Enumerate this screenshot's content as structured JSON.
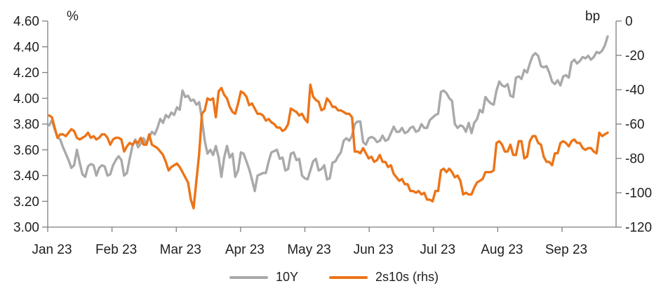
{
  "chart_data": {
    "type": "line",
    "title": "",
    "left_axis": {
      "label": "%",
      "min": 3.0,
      "max": 4.6,
      "tick_step": 0.2,
      "ticks": [
        "4.60",
        "4.40",
        "4.20",
        "4.00",
        "3.80",
        "3.60",
        "3.40",
        "3.20",
        "3.00"
      ]
    },
    "right_axis": {
      "label": "bp",
      "min": -120,
      "max": 0,
      "tick_step": 20,
      "ticks": [
        "0",
        "-20",
        "-40",
        "-60",
        "-80",
        "-100",
        "-120"
      ]
    },
    "x_axis": {
      "ticks": [
        "Jan 23",
        "Feb 23",
        "Mar 23",
        "Apr 23",
        "May 23",
        "Jun 23",
        "Jul 23",
        "Aug 23",
        "Sep 23"
      ]
    },
    "legend": [
      {
        "label": "10Y",
        "color": "#a9a9a9"
      },
      {
        "label": "2s10s (rhs)",
        "color": "#ec7418"
      }
    ],
    "grid": "off",
    "legend_position": "bottom-center",
    "axis_color": "#7f7f7f",
    "series": [
      {
        "name": "10Y",
        "axis": "left",
        "unit": "%",
        "color": "#a9a9a9",
        "values": [
          3.79,
          3.83,
          3.76,
          3.7,
          3.68,
          3.62,
          3.57,
          3.52,
          3.46,
          3.48,
          3.6,
          3.5,
          3.41,
          3.39,
          3.47,
          3.49,
          3.48,
          3.4,
          3.46,
          3.48,
          3.47,
          3.4,
          3.41,
          3.48,
          3.52,
          3.55,
          3.52,
          3.4,
          3.42,
          3.53,
          3.63,
          3.68,
          3.62,
          3.65,
          3.69,
          3.64,
          3.7,
          3.74,
          3.72,
          3.77,
          3.84,
          3.81,
          3.87,
          3.85,
          3.89,
          3.87,
          3.93,
          3.91,
          4.06,
          4.01,
          4.02,
          3.98,
          3.99,
          3.95,
          3.97,
          3.84,
          3.67,
          3.57,
          3.6,
          3.56,
          3.63,
          3.54,
          3.39,
          3.54,
          3.63,
          3.54,
          3.57,
          3.39,
          3.44,
          3.58,
          3.57,
          3.51,
          3.45,
          3.37,
          3.28,
          3.4,
          3.41,
          3.42,
          3.42,
          3.51,
          3.58,
          3.59,
          3.6,
          3.53,
          3.54,
          3.44,
          3.45,
          3.57,
          3.58,
          3.52,
          3.53,
          3.4,
          3.38,
          3.37,
          3.44,
          3.51,
          3.53,
          3.44,
          3.45,
          3.48,
          3.37,
          3.38,
          3.5,
          3.51,
          3.55,
          3.58,
          3.67,
          3.69,
          3.67,
          3.71,
          3.8,
          3.82,
          3.82,
          3.66,
          3.64,
          3.69,
          3.7,
          3.69,
          3.66,
          3.67,
          3.71,
          3.67,
          3.68,
          3.73,
          3.78,
          3.74,
          3.74,
          3.77,
          3.73,
          3.74,
          3.77,
          3.78,
          3.74,
          3.75,
          3.8,
          3.77,
          3.77,
          3.83,
          3.85,
          3.87,
          3.88,
          4.05,
          4.06,
          4.04,
          4.0,
          3.98,
          3.8,
          3.77,
          3.79,
          3.78,
          3.74,
          3.81,
          3.73,
          3.81,
          3.84,
          3.91,
          3.89,
          4.01,
          3.98,
          3.96,
          3.95,
          4.06,
          4.13,
          4.1,
          4.09,
          4.11,
          4.02,
          4.01,
          4.16,
          4.17,
          4.15,
          4.22,
          4.2,
          4.27,
          4.33,
          4.35,
          4.33,
          4.25,
          4.24,
          4.25,
          4.2,
          4.13,
          4.11,
          4.14,
          4.1,
          4.17,
          4.18,
          4.16,
          4.28,
          4.3,
          4.27,
          4.29,
          4.32,
          4.31,
          4.33,
          4.3,
          4.32,
          4.36,
          4.35,
          4.37,
          4.41,
          4.48
        ]
      },
      {
        "name": "2s10s (rhs)",
        "axis": "right",
        "unit": "bp",
        "color": "#ec7418",
        "values": [
          -55,
          -56,
          -62,
          -68,
          -66,
          -66,
          -67,
          -65,
          -63,
          -64,
          -68,
          -69,
          -68,
          -67,
          -65,
          -68,
          -67,
          -69,
          -68,
          -66,
          -66,
          -68,
          -72,
          -69,
          -68,
          -68,
          -69,
          -76,
          -73,
          -71,
          -72,
          -70,
          -71,
          -68,
          -72,
          -72,
          -66,
          -72,
          -73,
          -74,
          -76,
          -78,
          -82,
          -87,
          -85,
          -84,
          -83,
          -85,
          -88,
          -91,
          -94,
          -104,
          -109,
          -93,
          -77,
          -54,
          -52,
          -45,
          -46,
          -45,
          -56,
          -41,
          -39,
          -43,
          -45,
          -50,
          -53,
          -54,
          -48,
          -41,
          -42,
          -44,
          -49,
          -48,
          -51,
          -54,
          -54,
          -55,
          -58,
          -57,
          -59,
          -60,
          -62,
          -62,
          -64,
          -63,
          -60,
          -51,
          -52,
          -53,
          -55,
          -54,
          -57,
          -59,
          -37,
          -44,
          -46,
          -47,
          -52,
          -51,
          -45,
          -47,
          -50,
          -50,
          -52,
          -52,
          -53,
          -54,
          -54,
          -56,
          -76,
          -76,
          -77,
          -74,
          -77,
          -80,
          -79,
          -82,
          -81,
          -78,
          -82,
          -82,
          -85,
          -84,
          -89,
          -91,
          -93,
          -92,
          -95,
          -95,
          -99,
          -99,
          -100,
          -99,
          -101,
          -100,
          -104,
          -104,
          -105,
          -99,
          -99,
          -87,
          -86,
          -88,
          -86,
          -88,
          -91,
          -90,
          -93,
          -101,
          -100,
          -101,
          -101,
          -97,
          -94,
          -93,
          -92,
          -88,
          -88,
          -88,
          -87,
          -71,
          -70,
          -72,
          -76,
          -76,
          -72,
          -78,
          -78,
          -70,
          -70,
          -80,
          -79,
          -70,
          -67,
          -67,
          -71,
          -72,
          -79,
          -82,
          -82,
          -84,
          -77,
          -77,
          -71,
          -70,
          -71,
          -73,
          -70,
          -69,
          -71,
          -71,
          -74,
          -75,
          -74,
          -74,
          -76,
          -77,
          -65,
          -67,
          -66,
          -65
        ]
      }
    ]
  }
}
